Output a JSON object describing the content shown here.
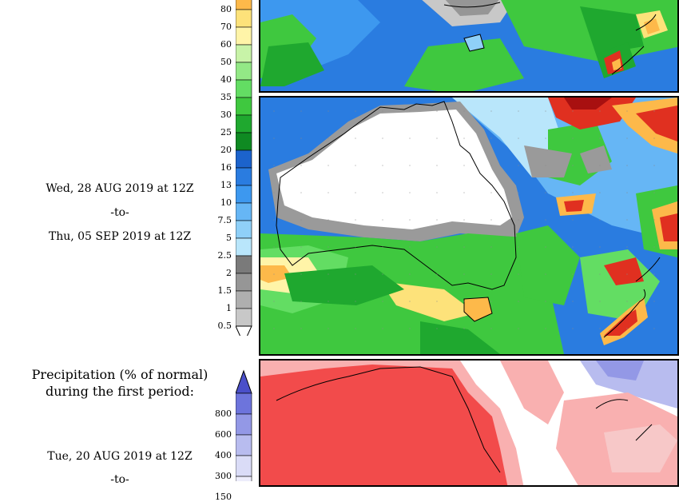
{
  "legend_top": {
    "ticks": [
      "80",
      "70",
      "60",
      "50",
      "40",
      "35",
      "30",
      "25",
      "20",
      "16",
      "13",
      "10",
      "7.5",
      "5",
      "2.5",
      "2",
      "1.5",
      "1",
      "0.5"
    ],
    "colors": [
      "#fdb94a",
      "#fde27a",
      "#fff4a8",
      "#c8f3a8",
      "#93e886",
      "#63dd63",
      "#3fc83f",
      "#1fa82f",
      "#0f8a22",
      "#1c63cc",
      "#2a7ce0",
      "#3d98ef",
      "#66b6f5",
      "#8fd0f8",
      "#b9e6fb",
      "#7a7a7a",
      "#969696",
      "#afafaf",
      "#c8c8c8"
    ]
  },
  "period_top": {
    "start": "Wed, 28 AUG 2019 at 12Z",
    "sep": "-to-",
    "end": "Thu, 05 SEP 2019 at 12Z"
  },
  "percent_heading": {
    "line1": "Precipitation (% of normal)",
    "line2": "during the first period:"
  },
  "legend_bottom": {
    "ticks": [
      "800",
      "600",
      "400",
      "300",
      "150"
    ],
    "colors": [
      "#4a4fc9",
      "#6d74dc",
      "#9398e6",
      "#b8bcef",
      "#dadcf7",
      "#ededfb"
    ]
  },
  "period_bottom": {
    "start": "Tue, 20 AUG 2019 at 12Z",
    "sep": "-to-"
  },
  "map_colors": {
    "ocean_blue": "#3d98ef",
    "green": "#3fc83f",
    "dry_white": "#ffffff",
    "grey": "#9a9a9a",
    "red": "#e03020",
    "pct_red": "#f24b4b",
    "pct_pink": "#f9b0b0"
  }
}
